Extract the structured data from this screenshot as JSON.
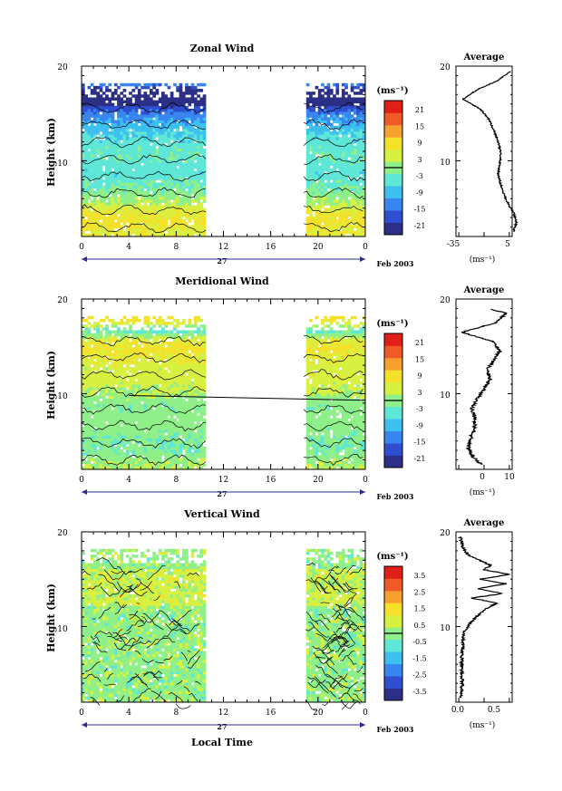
{
  "panels": [
    {
      "title": "Zonal Wind",
      "ylabel": "Height (km)",
      "unit_label": "(ms⁻¹)",
      "colorbar_ticks": [
        "21",
        "15",
        "9",
        "3",
        "-3",
        "-9",
        "-15",
        "-21"
      ],
      "avg_title": "Average",
      "avg_xticks": [
        "-35",
        "5"
      ],
      "avg_xlabel": "(ms⁻¹)",
      "date_label": "Feb 2003",
      "day_label": "27"
    },
    {
      "title": "Meridional Wind",
      "ylabel": "Height (km)",
      "unit_label": "(ms⁻¹)",
      "colorbar_ticks": [
        "21",
        "15",
        "9",
        "3",
        "-3",
        "-9",
        "-15",
        "-21"
      ],
      "avg_title": "Average",
      "avg_xticks": [
        "0",
        "10"
      ],
      "avg_xlabel": "(ms⁻¹)",
      "date_label": "Feb 2003",
      "day_label": "27"
    },
    {
      "title": "Vertical Wind",
      "ylabel": "Height (km)",
      "unit_label": "(ms⁻¹)",
      "colorbar_ticks": [
        "3.5",
        "2.5",
        "1.5",
        "0.5",
        "-0.5",
        "-1.5",
        "-2.5",
        "-3.5"
      ],
      "avg_title": "Average",
      "avg_xticks": [
        "0.0",
        "0.5"
      ],
      "avg_xlabel": "(ms⁻¹)",
      "date_label": "Feb 2003",
      "day_label": "27",
      "xlabel": "Local Time"
    }
  ],
  "colormap": [
    "#2b2f86",
    "#2f4fd0",
    "#3a86f0",
    "#3cc0f0",
    "#5ee6d6",
    "#8ff08a",
    "#d8f040",
    "#f5e02a",
    "#f6a030",
    "#f05a28",
    "#e02018"
  ],
  "chart_data": [
    {
      "type": "heatmap",
      "title": "Zonal Wind",
      "xlabel": "",
      "ylabel": "Height (km)",
      "x_ticks": [
        "0",
        "4",
        "8",
        "12",
        "16",
        "20",
        "0"
      ],
      "y_ticks": [
        "20",
        "10"
      ],
      "xlim": [
        0,
        24
      ],
      "ylim": [
        2,
        20
      ],
      "data_gap_hours": [
        10.5,
        18.8
      ],
      "colorbar_range": [
        -24,
        24
      ],
      "profile": [
        {
          "h": 2.5,
          "v": 6
        },
        {
          "h": 3.5,
          "v": 8
        },
        {
          "h": 4.5,
          "v": 6
        },
        {
          "h": 5.5,
          "v": 2
        },
        {
          "h": 6.5,
          "v": -1
        },
        {
          "h": 7.5,
          "v": -3
        },
        {
          "h": 8.5,
          "v": -5
        },
        {
          "h": 9.5,
          "v": -4
        },
        {
          "h": 10.5,
          "v": -3
        },
        {
          "h": 11.5,
          "v": -4
        },
        {
          "h": 12.5,
          "v": -6
        },
        {
          "h": 13.5,
          "v": -9
        },
        {
          "h": 14.5,
          "v": -12
        },
        {
          "h": 15.5,
          "v": -18
        },
        {
          "h": 16.5,
          "v": -30
        },
        {
          "h": 17.5,
          "v": -20
        },
        {
          "h": 18.5,
          "v": -5
        },
        {
          "h": 19.5,
          "v": 4
        }
      ]
    },
    {
      "type": "heatmap",
      "title": "Meridional Wind",
      "xlabel": "",
      "ylabel": "Height (km)",
      "x_ticks": [
        "0",
        "4",
        "8",
        "12",
        "16",
        "20",
        "0"
      ],
      "y_ticks": [
        "20",
        "10"
      ],
      "xlim": [
        0,
        24
      ],
      "ylim": [
        2,
        20
      ],
      "data_gap_hours": [
        10.5,
        18.8
      ],
      "colorbar_range": [
        -24,
        24
      ],
      "profile": [
        {
          "h": 2.5,
          "v": 2
        },
        {
          "h": 3.5,
          "v": -1
        },
        {
          "h": 4.5,
          "v": -2
        },
        {
          "h": 5.5,
          "v": -1
        },
        {
          "h": 6.5,
          "v": 0
        },
        {
          "h": 7.5,
          "v": 0
        },
        {
          "h": 8.5,
          "v": -1
        },
        {
          "h": 9.5,
          "v": 1
        },
        {
          "h": 10.5,
          "v": 3
        },
        {
          "h": 11.5,
          "v": 5
        },
        {
          "h": 12.5,
          "v": 4
        },
        {
          "h": 13.5,
          "v": 6
        },
        {
          "h": 14.5,
          "v": 8
        },
        {
          "h": 15.5,
          "v": 6
        },
        {
          "h": 16.5,
          "v": -4
        },
        {
          "h": 17.5,
          "v": 7
        },
        {
          "h": 18.5,
          "v": 10
        },
        {
          "h": 19.0,
          "v": 4
        }
      ]
    },
    {
      "type": "heatmap",
      "title": "Vertical Wind",
      "xlabel": "Local Time",
      "ylabel": "Height (km)",
      "x_ticks": [
        "0",
        "4",
        "8",
        "12",
        "16",
        "20",
        "0"
      ],
      "y_ticks": [
        "20",
        "10"
      ],
      "xlim": [
        0,
        24
      ],
      "ylim": [
        2,
        20
      ],
      "data_gap_hours": [
        10.5,
        18.8
      ],
      "colorbar_range": [
        -4,
        4
      ],
      "profile": [
        {
          "h": 2.5,
          "v": 0.03
        },
        {
          "h": 4.0,
          "v": 0.05
        },
        {
          "h": 6.0,
          "v": 0.04
        },
        {
          "h": 8.0,
          "v": 0.06
        },
        {
          "h": 9.5,
          "v": 0.08
        },
        {
          "h": 10.5,
          "v": 0.2
        },
        {
          "h": 11.5,
          "v": 0.35
        },
        {
          "h": 12.5,
          "v": 0.6
        },
        {
          "h": 13.0,
          "v": 0.2
        },
        {
          "h": 13.5,
          "v": 0.7
        },
        {
          "h": 14.0,
          "v": 0.3
        },
        {
          "h": 14.5,
          "v": 0.75
        },
        {
          "h": 15.0,
          "v": 0.35
        },
        {
          "h": 15.5,
          "v": 0.8
        },
        {
          "h": 16.0,
          "v": 0.4
        },
        {
          "h": 16.5,
          "v": 0.5
        },
        {
          "h": 17.5,
          "v": 0.15
        },
        {
          "h": 18.5,
          "v": 0.05
        },
        {
          "h": 19.5,
          "v": 0.02
        }
      ]
    }
  ]
}
